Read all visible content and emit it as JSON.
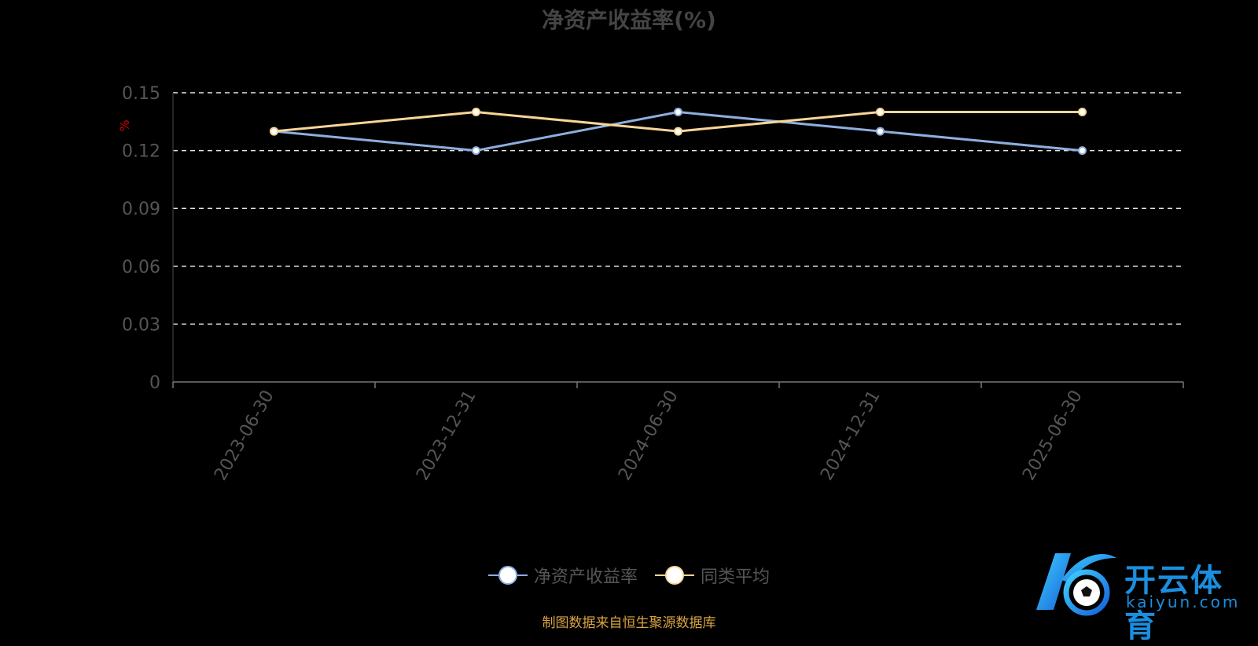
{
  "chart_data": {
    "type": "line",
    "title": "净资产收益率(%)",
    "ylabel": "%",
    "categories": [
      "2023-06-30",
      "2023-12-31",
      "2024-06-30",
      "2024-12-31",
      "2025-06-30"
    ],
    "series": [
      {
        "name": "净资产收益率",
        "values": [
          0.13,
          0.12,
          0.14,
          0.13,
          0.12
        ],
        "color": "#8eaede"
      },
      {
        "name": "同类平均",
        "values": [
          0.13,
          0.14,
          0.13,
          0.14,
          0.14
        ],
        "color": "#f9d597"
      }
    ],
    "yticks": [
      "0",
      "0.03",
      "0.06",
      "0.09",
      "0.12",
      "0.15"
    ],
    "ylim": [
      0,
      0.15
    ],
    "grid": true,
    "legend_position": "bottom"
  },
  "source": "制图数据来自恒生聚源数据库",
  "logo": {
    "cn": "开云体育",
    "en": "kaiyun.com"
  }
}
